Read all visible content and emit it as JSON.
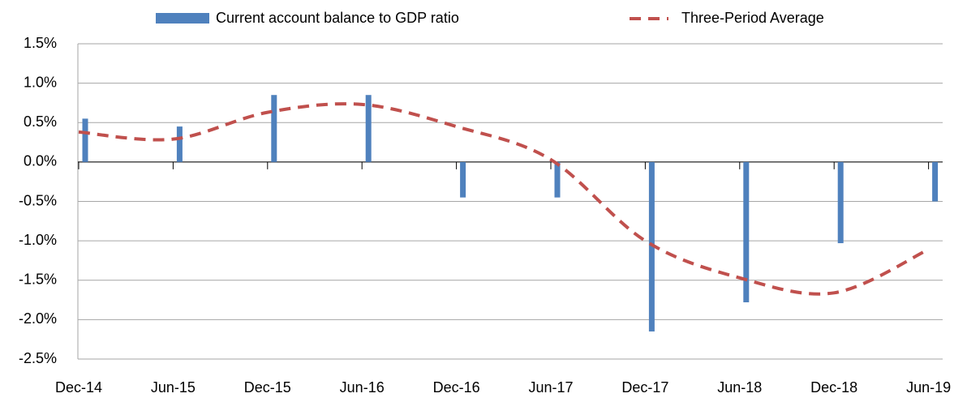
{
  "chart_data": {
    "type": "bar-line",
    "categories": [
      "Dec-14",
      "Jun-15",
      "Dec-15",
      "Jun-16",
      "Dec-16",
      "Jun-17",
      "Dec-17",
      "Jun-18",
      "Dec-18",
      "Jun-19"
    ],
    "series": [
      {
        "name": "Current account balance to GDP ratio",
        "type": "bar",
        "color": "#4f81bd",
        "values": [
          0.55,
          0.45,
          0.85,
          0.85,
          -0.45,
          -0.45,
          -2.15,
          -1.78,
          -1.03,
          -0.5
        ]
      },
      {
        "name": "Three-Period Average",
        "type": "line",
        "color": "#c0504d",
        "dashed": true,
        "values": [
          0.38,
          0.29,
          0.63,
          0.73,
          0.45,
          0.03,
          -1.0,
          -1.47,
          -1.66,
          -1.11
        ]
      }
    ],
    "ylim": [
      -2.5,
      1.5
    ],
    "yticks": [
      {
        "value": 1.5,
        "label": "1.5%"
      },
      {
        "value": 1.0,
        "label": "1.0%"
      },
      {
        "value": 0.5,
        "label": "0.5%"
      },
      {
        "value": 0.0,
        "label": "0.0%"
      },
      {
        "value": -0.5,
        "label": "-0.5%"
      },
      {
        "value": -1.0,
        "label": "-1.0%"
      },
      {
        "value": -1.5,
        "label": "-1.5%"
      },
      {
        "value": -2.0,
        "label": "-2.0%"
      },
      {
        "value": -2.5,
        "label": "-2.5%"
      }
    ],
    "grid": true
  }
}
